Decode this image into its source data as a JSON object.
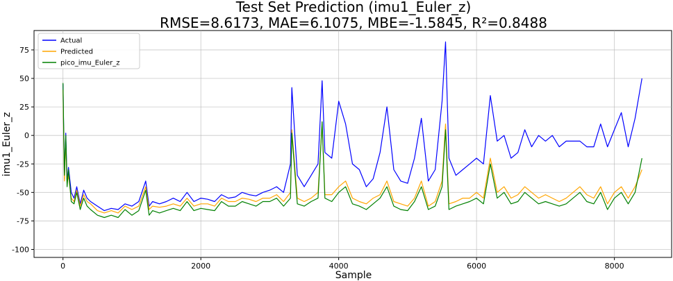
{
  "chart_data": {
    "type": "line",
    "title": "Test Set Prediction (imu1_Euler_z)",
    "subtitle": "RMSE=8.6173, MAE=6.1075, MBE=-1.5845, R²=0.8488",
    "xlabel": "Sample",
    "ylabel": "imu1_Euler_z",
    "xlim": [
      -420,
      8830
    ],
    "ylim": [
      -107,
      92
    ],
    "x_ticks": [
      0,
      2000,
      4000,
      6000,
      8000
    ],
    "y_ticks": [
      -100,
      -75,
      -50,
      -25,
      0,
      25,
      50,
      75
    ],
    "grid": true,
    "legend_position": "top-left",
    "series": [
      {
        "name": "Actual",
        "color": "#0000ff",
        "x": [
          0,
          20,
          40,
          60,
          80,
          120,
          160,
          200,
          250,
          300,
          350,
          400,
          500,
          600,
          700,
          800,
          900,
          1000,
          1100,
          1200,
          1250,
          1300,
          1400,
          1500,
          1600,
          1700,
          1800,
          1900,
          2000,
          2100,
          2200,
          2300,
          2400,
          2500,
          2600,
          2700,
          2800,
          2900,
          3000,
          3100,
          3200,
          3300,
          3320,
          3400,
          3500,
          3600,
          3700,
          3760,
          3800,
          3900,
          4000,
          4100,
          4200,
          4300,
          4400,
          4500,
          4600,
          4700,
          4800,
          4900,
          5000,
          5100,
          5200,
          5300,
          5400,
          5500,
          5550,
          5600,
          5700,
          5800,
          5900,
          6000,
          6100,
          6200,
          6300,
          6400,
          6500,
          6600,
          6700,
          6800,
          6900,
          7000,
          7100,
          7200,
          7300,
          7400,
          7500,
          7600,
          7700,
          7800,
          7900,
          8000,
          8100,
          8200,
          8300,
          8400
        ],
        "y": [
          45,
          -38,
          2,
          -40,
          -28,
          -50,
          -55,
          -45,
          -60,
          -48,
          -55,
          -58,
          -62,
          -66,
          -64,
          -65,
          -60,
          -62,
          -58,
          -40,
          -62,
          -58,
          -60,
          -58,
          -55,
          -58,
          -50,
          -58,
          -55,
          -56,
          -58,
          -52,
          -55,
          -54,
          -50,
          -52,
          -53,
          -50,
          -48,
          -45,
          -50,
          -25,
          42,
          -35,
          -45,
          -35,
          -25,
          48,
          -15,
          -20,
          30,
          10,
          -25,
          -30,
          -45,
          -38,
          -15,
          25,
          -30,
          -40,
          -42,
          -20,
          15,
          -40,
          -30,
          30,
          82,
          -20,
          -35,
          -30,
          -25,
          -20,
          -25,
          35,
          -5,
          0,
          -20,
          -15,
          5,
          -10,
          0,
          -5,
          0,
          -10,
          -5,
          -5,
          -5,
          -10,
          -10,
          10,
          -10,
          5,
          20,
          -10,
          15,
          50
        ]
      },
      {
        "name": "Predicted",
        "color": "#ffa500",
        "x": [
          0,
          20,
          40,
          60,
          80,
          120,
          160,
          200,
          250,
          300,
          350,
          400,
          500,
          600,
          700,
          800,
          900,
          1000,
          1100,
          1200,
          1250,
          1300,
          1400,
          1500,
          1600,
          1700,
          1800,
          1900,
          2000,
          2100,
          2200,
          2300,
          2400,
          2500,
          2600,
          2700,
          2800,
          2900,
          3000,
          3100,
          3200,
          3300,
          3320,
          3400,
          3500,
          3600,
          3700,
          3760,
          3800,
          3900,
          4000,
          4100,
          4200,
          4300,
          4400,
          4500,
          4600,
          4700,
          4800,
          4900,
          5000,
          5100,
          5200,
          5300,
          5400,
          5500,
          5550,
          5600,
          5700,
          5800,
          5900,
          6000,
          6100,
          6200,
          6300,
          6400,
          6500,
          6600,
          6700,
          6800,
          6900,
          7000,
          7100,
          7200,
          7300,
          7400,
          7500,
          7600,
          7700,
          7800,
          7900,
          8000,
          8100,
          8200,
          8300,
          8400
        ],
        "y": [
          40,
          -40,
          -5,
          -42,
          -35,
          -55,
          -58,
          -48,
          -62,
          -52,
          -58,
          -60,
          -66,
          -68,
          -66,
          -68,
          -62,
          -65,
          -62,
          -45,
          -65,
          -62,
          -63,
          -62,
          -60,
          -62,
          -55,
          -62,
          -60,
          -60,
          -62,
          -55,
          -58,
          -58,
          -55,
          -56,
          -58,
          -55,
          -55,
          -52,
          -58,
          -50,
          5,
          -55,
          -58,
          -55,
          -50,
          10,
          -52,
          -52,
          -45,
          -40,
          -55,
          -58,
          -60,
          -55,
          -52,
          -40,
          -58,
          -60,
          -62,
          -55,
          -40,
          -62,
          -58,
          -40,
          10,
          -60,
          -58,
          -55,
          -55,
          -50,
          -55,
          -20,
          -50,
          -45,
          -55,
          -52,
          -45,
          -50,
          -55,
          -52,
          -55,
          -58,
          -55,
          -50,
          -45,
          -52,
          -55,
          -45,
          -60,
          -50,
          -45,
          -55,
          -45,
          -30
        ]
      },
      {
        "name": "pico_imu_Euler_z",
        "color": "#008000",
        "x": [
          0,
          20,
          40,
          60,
          80,
          120,
          160,
          200,
          250,
          300,
          350,
          400,
          500,
          600,
          700,
          800,
          900,
          1000,
          1100,
          1200,
          1250,
          1300,
          1400,
          1500,
          1600,
          1700,
          1800,
          1900,
          2000,
          2100,
          2200,
          2300,
          2400,
          2500,
          2600,
          2700,
          2800,
          2900,
          3000,
          3100,
          3200,
          3300,
          3320,
          3400,
          3500,
          3600,
          3700,
          3760,
          3800,
          3900,
          4000,
          4100,
          4200,
          4300,
          4400,
          4500,
          4600,
          4700,
          4800,
          4900,
          5000,
          5100,
          5200,
          5300,
          5400,
          5500,
          5550,
          5600,
          5700,
          5800,
          5900,
          6000,
          6100,
          6200,
          6300,
          6400,
          6500,
          6600,
          6700,
          6800,
          6900,
          7000,
          7100,
          7200,
          7300,
          7400,
          7500,
          7600,
          7700,
          7800,
          7900,
          8000,
          8100,
          8200,
          8300,
          8400
        ],
        "y": [
          46,
          -35,
          0,
          -45,
          -30,
          -58,
          -60,
          -50,
          -65,
          -55,
          -62,
          -65,
          -70,
          -72,
          -70,
          -72,
          -65,
          -70,
          -66,
          -48,
          -70,
          -66,
          -68,
          -66,
          -64,
          -66,
          -58,
          -66,
          -64,
          -65,
          -66,
          -58,
          -62,
          -62,
          -58,
          -60,
          -62,
          -58,
          -58,
          -55,
          -62,
          -55,
          2,
          -60,
          -62,
          -58,
          -55,
          12,
          -55,
          -58,
          -50,
          -45,
          -60,
          -62,
          -65,
          -60,
          -55,
          -45,
          -62,
          -65,
          -66,
          -58,
          -45,
          -65,
          -62,
          -45,
          5,
          -65,
          -62,
          -60,
          -58,
          -55,
          -60,
          -25,
          -55,
          -50,
          -60,
          -58,
          -50,
          -55,
          -60,
          -58,
          -60,
          -62,
          -60,
          -55,
          -50,
          -58,
          -60,
          -50,
          -65,
          -55,
          -50,
          -60,
          -50,
          -20
        ]
      }
    ]
  }
}
